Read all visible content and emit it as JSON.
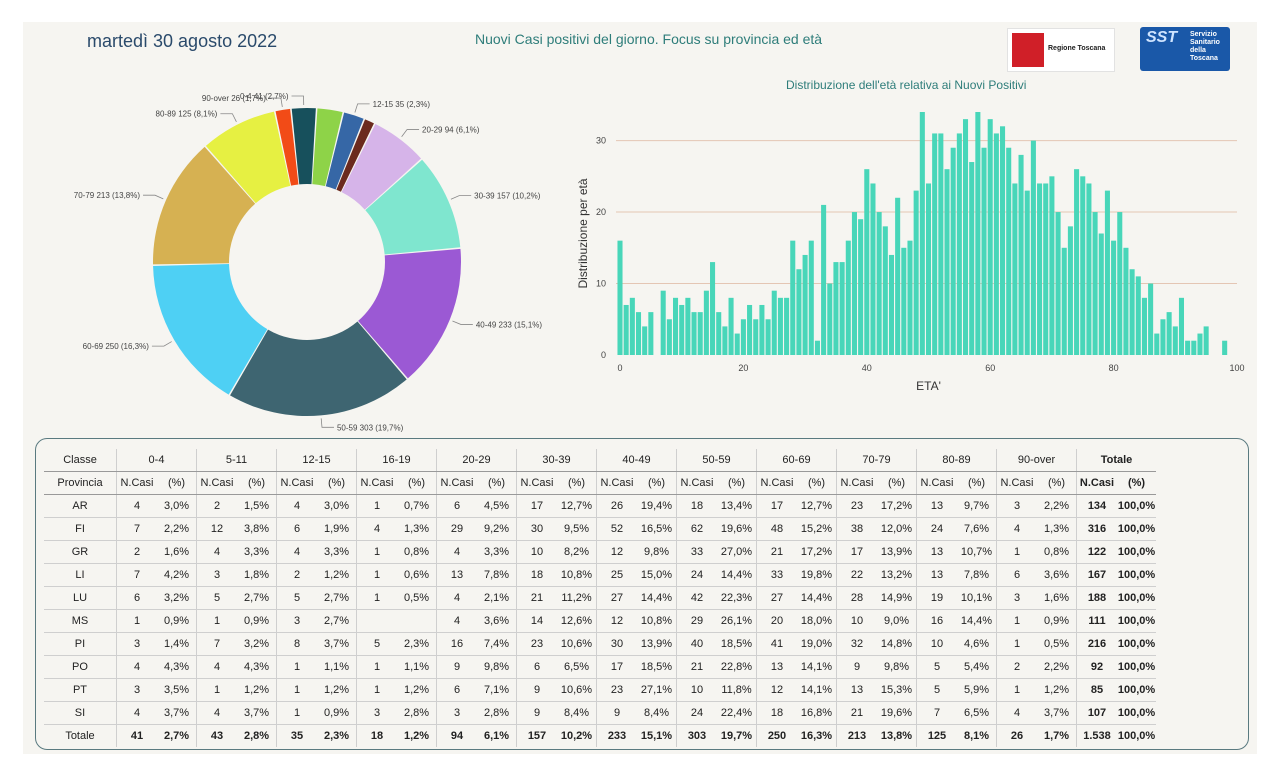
{
  "header": {
    "date": "martedì 30 agosto 2022",
    "title": "Nuovi Casi positivi del giorno. Focus su provincia ed età",
    "logo_regione": "Regione Toscana",
    "logo_sst_big": "SST",
    "logo_sst_lines": [
      "Servizio",
      "Sanitario",
      "della",
      "Toscana"
    ]
  },
  "colors": {
    "bars": "#48d6b9",
    "grid": "#e4c6b4",
    "pie": [
      "#17505c",
      "#8ed348",
      "#3667a6",
      "#6b2a1e",
      "#d6b4e9",
      "#7fe6cf",
      "#9b59d4",
      "#3e6571",
      "#4ed0f4",
      "#d6b152",
      "#e6f042",
      "#f24b17"
    ]
  },
  "chart_data": [
    {
      "type": "pie",
      "variant": "donut",
      "slices": [
        {
          "label": "0-4 41 (2,7%)",
          "value": 41
        },
        {
          "label": "5-11 43 (2,8%)",
          "value": 43
        },
        {
          "label": "12-15 35 (2,3%)",
          "value": 35
        },
        {
          "label": "16-19 18 (1,2%)",
          "value": 18
        },
        {
          "label": "20-29 94 (6,1%)",
          "value": 94
        },
        {
          "label": "30-39 157 (10,2%)",
          "value": 157
        },
        {
          "label": "40-49 233 (15,1%)",
          "value": 233
        },
        {
          "label": "50-59 303 (19,7%)",
          "value": 303
        },
        {
          "label": "60-69 250 (16,3%)",
          "value": 250
        },
        {
          "label": "70-79 213 (13,8%)",
          "value": 213
        },
        {
          "label": "80-89 125 (8,1%)",
          "value": 125
        },
        {
          "label": "90-over 26 (1,7%)",
          "value": 26
        }
      ],
      "labeled_slices": [
        0,
        2,
        4,
        5,
        6,
        7,
        8,
        9,
        10,
        11
      ]
    },
    {
      "type": "bar",
      "title": "Distribuzione dell'età relativa ai Nuovi Positivi",
      "xlabel": "ETA'",
      "ylabel": "Distribuzione per età",
      "xlim": [
        0,
        100
      ],
      "ylim": [
        0,
        34
      ],
      "xticks": [
        0,
        20,
        40,
        60,
        80,
        100
      ],
      "yticks": [
        0,
        10,
        20,
        30
      ],
      "grid": true,
      "x": [
        0,
        1,
        2,
        3,
        4,
        5,
        6,
        7,
        8,
        9,
        10,
        11,
        12,
        13,
        14,
        15,
        16,
        17,
        18,
        19,
        20,
        21,
        22,
        23,
        24,
        25,
        26,
        27,
        28,
        29,
        30,
        31,
        32,
        33,
        34,
        35,
        36,
        37,
        38,
        39,
        40,
        41,
        42,
        43,
        44,
        45,
        46,
        47,
        48,
        49,
        50,
        51,
        52,
        53,
        54,
        55,
        56,
        57,
        58,
        59,
        60,
        61,
        62,
        63,
        64,
        65,
        66,
        67,
        68,
        69,
        70,
        71,
        72,
        73,
        74,
        75,
        76,
        77,
        78,
        79,
        80,
        81,
        82,
        83,
        84,
        85,
        86,
        87,
        88,
        89,
        90,
        91,
        92,
        93,
        94,
        95,
        96,
        97,
        98,
        99,
        100
      ],
      "values": [
        16,
        7,
        8,
        6,
        4,
        6,
        0,
        9,
        5,
        8,
        7,
        8,
        6,
        6,
        9,
        13,
        6,
        4,
        8,
        3,
        5,
        7,
        5,
        7,
        5,
        9,
        8,
        8,
        16,
        12,
        14,
        16,
        2,
        21,
        10,
        13,
        13,
        16,
        20,
        19,
        26,
        24,
        20,
        18,
        14,
        22,
        15,
        16,
        23,
        34,
        24,
        31,
        31,
        26,
        29,
        31,
        33,
        27,
        34,
        29,
        33,
        31,
        32,
        29,
        24,
        28,
        23,
        30,
        24,
        24,
        25,
        20,
        15,
        18,
        26,
        25,
        24,
        20,
        17,
        23,
        16,
        20,
        15,
        12,
        11,
        8,
        10,
        3,
        5,
        6,
        4,
        8,
        2,
        2,
        3,
        4,
        0,
        0,
        2,
        0,
        0
      ]
    }
  ],
  "table": {
    "corner_top": "Classe",
    "corner_bottom": "Provincia",
    "groups": [
      "0-4",
      "5-11",
      "12-15",
      "16-19",
      "20-29",
      "30-39",
      "40-49",
      "50-59",
      "60-69",
      "70-79",
      "80-89",
      "90-over",
      "Totale"
    ],
    "sub_n": "N.Casi",
    "sub_p": "(%)",
    "rows": [
      {
        "prov": "AR",
        "cells": [
          "4",
          "3,0%",
          "2",
          "1,5%",
          "4",
          "3,0%",
          "1",
          "0,7%",
          "6",
          "4,5%",
          "17",
          "12,7%",
          "26",
          "19,4%",
          "18",
          "13,4%",
          "17",
          "12,7%",
          "23",
          "17,2%",
          "13",
          "9,7%",
          "3",
          "2,2%"
        ],
        "total_n": "134",
        "total_p": "100,0%"
      },
      {
        "prov": "FI",
        "cells": [
          "7",
          "2,2%",
          "12",
          "3,8%",
          "6",
          "1,9%",
          "4",
          "1,3%",
          "29",
          "9,2%",
          "30",
          "9,5%",
          "52",
          "16,5%",
          "62",
          "19,6%",
          "48",
          "15,2%",
          "38",
          "12,0%",
          "24",
          "7,6%",
          "4",
          "1,3%"
        ],
        "total_n": "316",
        "total_p": "100,0%"
      },
      {
        "prov": "GR",
        "cells": [
          "2",
          "1,6%",
          "4",
          "3,3%",
          "4",
          "3,3%",
          "1",
          "0,8%",
          "4",
          "3,3%",
          "10",
          "8,2%",
          "12",
          "9,8%",
          "33",
          "27,0%",
          "21",
          "17,2%",
          "17",
          "13,9%",
          "13",
          "10,7%",
          "1",
          "0,8%"
        ],
        "total_n": "122",
        "total_p": "100,0%"
      },
      {
        "prov": "LI",
        "cells": [
          "7",
          "4,2%",
          "3",
          "1,8%",
          "2",
          "1,2%",
          "1",
          "0,6%",
          "13",
          "7,8%",
          "18",
          "10,8%",
          "25",
          "15,0%",
          "24",
          "14,4%",
          "33",
          "19,8%",
          "22",
          "13,2%",
          "13",
          "7,8%",
          "6",
          "3,6%"
        ],
        "total_n": "167",
        "total_p": "100,0%"
      },
      {
        "prov": "LU",
        "cells": [
          "6",
          "3,2%",
          "5",
          "2,7%",
          "5",
          "2,7%",
          "1",
          "0,5%",
          "4",
          "2,1%",
          "21",
          "11,2%",
          "27",
          "14,4%",
          "42",
          "22,3%",
          "27",
          "14,4%",
          "28",
          "14,9%",
          "19",
          "10,1%",
          "3",
          "1,6%"
        ],
        "total_n": "188",
        "total_p": "100,0%"
      },
      {
        "prov": "MS",
        "cells": [
          "1",
          "0,9%",
          "1",
          "0,9%",
          "3",
          "2,7%",
          "",
          "",
          "4",
          "3,6%",
          "14",
          "12,6%",
          "12",
          "10,8%",
          "29",
          "26,1%",
          "20",
          "18,0%",
          "10",
          "9,0%",
          "16",
          "14,4%",
          "1",
          "0,9%"
        ],
        "total_n": "111",
        "total_p": "100,0%"
      },
      {
        "prov": "PI",
        "cells": [
          "3",
          "1,4%",
          "7",
          "3,2%",
          "8",
          "3,7%",
          "5",
          "2,3%",
          "16",
          "7,4%",
          "23",
          "10,6%",
          "30",
          "13,9%",
          "40",
          "18,5%",
          "41",
          "19,0%",
          "32",
          "14,8%",
          "10",
          "4,6%",
          "1",
          "0,5%"
        ],
        "total_n": "216",
        "total_p": "100,0%"
      },
      {
        "prov": "PO",
        "cells": [
          "4",
          "4,3%",
          "4",
          "4,3%",
          "1",
          "1,1%",
          "1",
          "1,1%",
          "9",
          "9,8%",
          "6",
          "6,5%",
          "17",
          "18,5%",
          "21",
          "22,8%",
          "13",
          "14,1%",
          "9",
          "9,8%",
          "5",
          "5,4%",
          "2",
          "2,2%"
        ],
        "total_n": "92",
        "total_p": "100,0%"
      },
      {
        "prov": "PT",
        "cells": [
          "3",
          "3,5%",
          "1",
          "1,2%",
          "1",
          "1,2%",
          "1",
          "1,2%",
          "6",
          "7,1%",
          "9",
          "10,6%",
          "23",
          "27,1%",
          "10",
          "11,8%",
          "12",
          "14,1%",
          "13",
          "15,3%",
          "5",
          "5,9%",
          "1",
          "1,2%"
        ],
        "total_n": "85",
        "total_p": "100,0%"
      },
      {
        "prov": "SI",
        "cells": [
          "4",
          "3,7%",
          "4",
          "3,7%",
          "1",
          "0,9%",
          "3",
          "2,8%",
          "3",
          "2,8%",
          "9",
          "8,4%",
          "9",
          "8,4%",
          "24",
          "22,4%",
          "18",
          "16,8%",
          "21",
          "19,6%",
          "7",
          "6,5%",
          "4",
          "3,7%"
        ],
        "total_n": "107",
        "total_p": "100,0%"
      }
    ],
    "totals": {
      "label": "Totale",
      "cells": [
        "41",
        "2,7%",
        "43",
        "2,8%",
        "35",
        "2,3%",
        "18",
        "1,2%",
        "94",
        "6,1%",
        "157",
        "10,2%",
        "233",
        "15,1%",
        "303",
        "19,7%",
        "250",
        "16,3%",
        "213",
        "13,8%",
        "125",
        "8,1%",
        "26",
        "1,7%"
      ],
      "total_n": "1.538",
      "total_p": "100,0%"
    }
  }
}
